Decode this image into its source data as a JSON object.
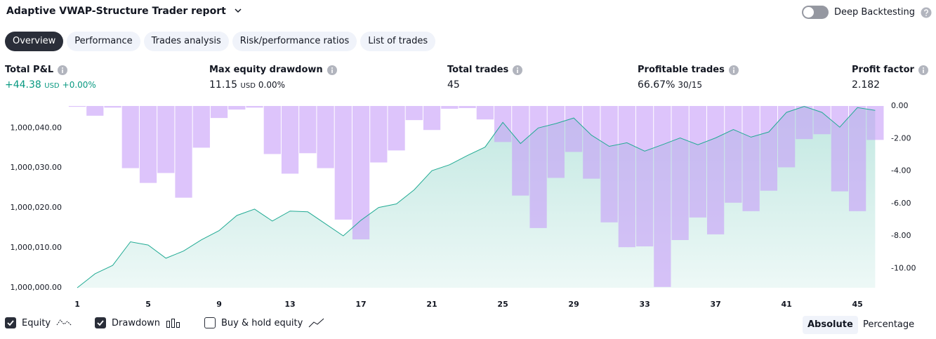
{
  "header": {
    "title": "Adaptive VWAP-Structure Trader report",
    "toggle_label": "Deep Backtesting"
  },
  "tabs": [
    "Overview",
    "Performance",
    "Trades analysis",
    "Risk/performance ratios",
    "List of trades"
  ],
  "stats": [
    {
      "label": "Total P&L",
      "value": "+44.38",
      "unit": "USD",
      "extra": "+0.00%"
    },
    {
      "label": "Max equity drawdown",
      "value": "11.15",
      "unit": "USD",
      "extra": "0.00%"
    },
    {
      "label": "Total trades",
      "value": "45"
    },
    {
      "label": "Profitable trades",
      "value": "66.67%",
      "extra": "30/15"
    },
    {
      "label": "Profit factor",
      "value": "2.182"
    }
  ],
  "chart_data": {
    "type": "combo",
    "x": [
      1,
      2,
      3,
      4,
      5,
      6,
      7,
      8,
      9,
      10,
      11,
      12,
      13,
      14,
      15,
      16,
      17,
      18,
      19,
      20,
      21,
      22,
      23,
      24,
      25,
      26,
      27,
      28,
      29,
      30,
      31,
      32,
      33,
      34,
      35,
      36,
      37,
      38,
      39,
      40,
      41,
      42,
      43,
      44,
      45,
      46
    ],
    "xlim": [
      0.5,
      46.5
    ],
    "xticks": [
      1,
      5,
      9,
      13,
      17,
      21,
      25,
      29,
      33,
      37,
      41,
      45
    ],
    "ylim": [
      1000000,
      1000045.5
    ],
    "yticks": [
      {
        "value": 1000000,
        "label": "1,000,000.00"
      },
      {
        "value": 1000010,
        "label": "1,000,010.00"
      },
      {
        "value": 1000020,
        "label": "1,000,020.00"
      },
      {
        "value": 1000030,
        "label": "1,000,030.00"
      },
      {
        "value": 1000040,
        "label": "1,000,040.00"
      }
    ],
    "y2lim": [
      -11.2,
      0
    ],
    "y2ticks": [
      {
        "value": 0,
        "label": "0.00"
      },
      {
        "value": -2,
        "label": "-2.00"
      },
      {
        "value": -4,
        "label": "-4.00"
      },
      {
        "value": -6,
        "label": "-6.00"
      },
      {
        "value": -8,
        "label": "-8.00"
      },
      {
        "value": -10,
        "label": "-10.00"
      }
    ],
    "series": [
      {
        "name": "Equity",
        "type": "line",
        "color": "#22ab94",
        "values": [
          1000000.0,
          1000003.5,
          1000005.6,
          1000011.5,
          1000010.7,
          1000007.4,
          1000009.2,
          1000012.0,
          1000014.3,
          1000018.1,
          1000019.7,
          1000016.7,
          1000019.2,
          1000019.0,
          1000016.0,
          1000013.0,
          1000016.9,
          1000020.1,
          1000021.0,
          1000024.5,
          1000029.3,
          1000030.8,
          1000033.1,
          1000035.2,
          1000041.4,
          1000036.1,
          1000040.0,
          1000041.1,
          1000042.5,
          1000038.2,
          1000035.4,
          1000036.3,
          1000034.2,
          1000035.8,
          1000037.5,
          1000035.8,
          1000037.5,
          1000039.6,
          1000037.7,
          1000039.0,
          1000043.9,
          1000045.4,
          1000043.9,
          1000040.2,
          1000045.1,
          1000044.4
        ]
      },
      {
        "name": "Drawdown",
        "type": "bar",
        "axis": "y2",
        "color": "#c69cf9",
        "values": [
          -0.05,
          -0.6,
          -0.1,
          -3.83,
          -4.74,
          -4.13,
          -5.65,
          -2.57,
          -0.74,
          -0.22,
          -0.1,
          -2.96,
          -4.17,
          -2.91,
          -3.83,
          -7.0,
          -8.22,
          -3.48,
          -2.74,
          -0.87,
          -1.48,
          -0.17,
          -0.13,
          -0.83,
          -2.22,
          -5.52,
          -7.52,
          -4.43,
          -2.83,
          -4.48,
          -7.17,
          -8.7,
          -8.65,
          -11.15,
          -8.26,
          -6.87,
          -7.91,
          -5.96,
          -6.48,
          -5.22,
          -3.78,
          -2.04,
          -1.74,
          -5.26,
          -6.48,
          -2.09
        ]
      }
    ],
    "buy_hold_label": "Buy & hold equity"
  },
  "view_buttons": [
    "Absolute",
    "Percentage"
  ]
}
